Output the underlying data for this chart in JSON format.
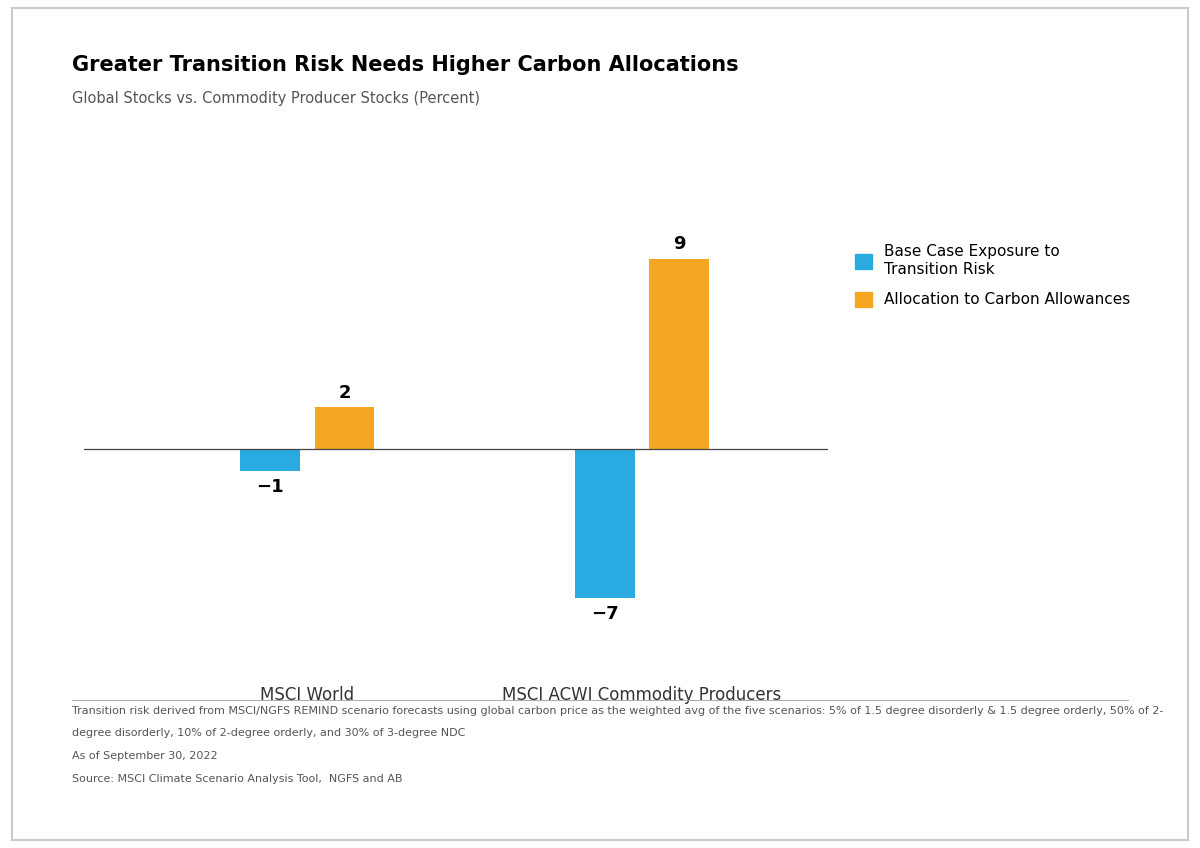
{
  "title": "Greater Transition Risk Needs Higher Carbon Allocations",
  "subtitle": "Global Stocks vs. Commodity Producer Stocks (Percent)",
  "categories": [
    "MSCI World",
    "MSCI ACWI Commodity Producers"
  ],
  "base_case_values": [
    -1,
    -7
  ],
  "carbon_alloc_values": [
    2,
    9
  ],
  "blue_color": "#29ABE2",
  "gold_color": "#F5A623",
  "bar_width": 0.32,
  "ylim": [
    -10,
    12
  ],
  "xlim": [
    -0.2,
    3.8
  ],
  "x_positions": [
    1.0,
    2.8
  ],
  "legend_labels": [
    "Base Case Exposure to\nTransition Risk",
    "Allocation to Carbon Allowances"
  ],
  "footnote_lines": [
    "Transition risk derived from MSCI/NGFS REMIND scenario forecasts using global carbon price as the weighted avg of the five scenarios: 5% of 1.5 degree disorderly & 1.5 degree orderly, 50% of 2-",
    "degree disorderly, 10% of 2-degree orderly, and 30% of 3-degree NDC",
    "As of September 30, 2022",
    "Source: MSCI Climate Scenario Analysis Tool,  NGFS and AB"
  ],
  "background_color": "#FFFFFF",
  "title_fontsize": 15,
  "subtitle_fontsize": 10.5,
  "xlabel_fontsize": 12,
  "bar_label_fontsize": 13,
  "legend_fontsize": 11,
  "footnote_fontsize": 8,
  "border_color": "#CCCCCC"
}
